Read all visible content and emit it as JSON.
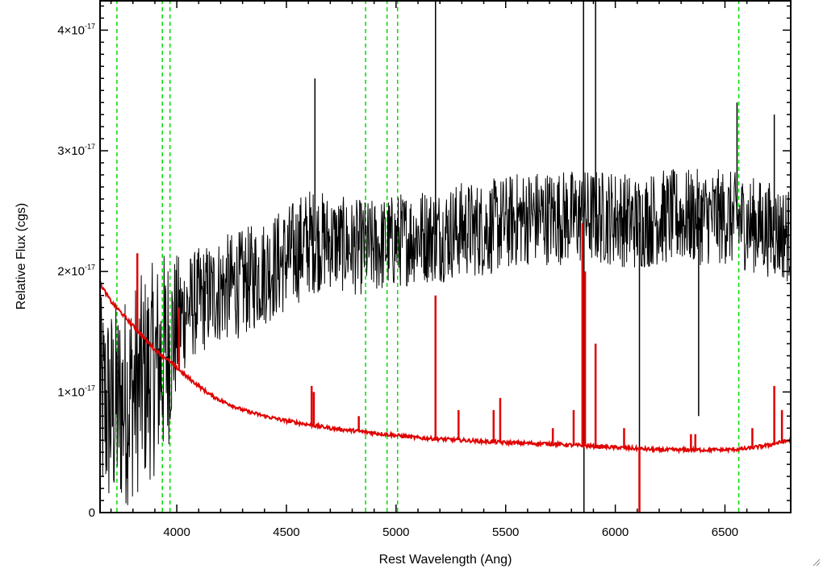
{
  "chart_data": {
    "type": "line",
    "xlabel": "Rest Wavelength (Ang)",
    "ylabel": "Relative Flux (cgs)",
    "xlim": [
      3650,
      6800
    ],
    "ylim": [
      0,
      4.25e-17
    ],
    "x_ticks": [
      {
        "value": 4000,
        "label": "4000"
      },
      {
        "value": 4500,
        "label": "4500"
      },
      {
        "value": 5000,
        "label": "5000"
      },
      {
        "value": 5500,
        "label": "5500"
      },
      {
        "value": 6000,
        "label": "6000"
      },
      {
        "value": 6500,
        "label": "6500"
      }
    ],
    "y_ticks": [
      {
        "value": 0,
        "base": "0",
        "exp": ""
      },
      {
        "value": 1e-17,
        "base": "1×10",
        "exp": "-17"
      },
      {
        "value": 2e-17,
        "base": "2×10",
        "exp": "-17"
      },
      {
        "value": 3e-17,
        "base": "3×10",
        "exp": "-17"
      },
      {
        "value": 4e-17,
        "base": "4×10",
        "exp": "-17"
      }
    ],
    "vertical_lines": [
      3727,
      3934,
      3969,
      4861,
      4959,
      5007,
      6563
    ],
    "series": [
      {
        "color": "#000000",
        "style": "noisy-observed",
        "envelope": {
          "x": [
            3650,
            3700,
            3750,
            3800,
            3850,
            3900,
            3950,
            4000,
            4050,
            4100,
            4200,
            4300,
            4400,
            4500,
            4600,
            4700,
            4800,
            4900,
            5000,
            5100,
            5200,
            5300,
            5400,
            5500,
            5600,
            5700,
            5800,
            5900,
            6000,
            6100,
            6200,
            6300,
            6400,
            6500,
            6600,
            6700,
            6800
          ],
          "center": [
            9e-18,
            8.5e-18,
            9e-18,
            1e-17,
            1.1e-17,
            1.2e-17,
            1.3e-17,
            1.55e-17,
            1.7e-17,
            1.75e-17,
            1.85e-17,
            1.9e-17,
            2e-17,
            2.1e-17,
            2.25e-17,
            2.25e-17,
            2.2e-17,
            2.2e-17,
            2.25e-17,
            2.3e-17,
            2.3e-17,
            2.35e-17,
            2.35e-17,
            2.4e-17,
            2.45e-17,
            2.45e-17,
            2.45e-17,
            2.45e-17,
            2.45e-17,
            2.4e-17,
            2.45e-17,
            2.45e-17,
            2.45e-17,
            2.45e-17,
            2.4e-17,
            2.35e-17,
            2.3e-17
          ],
          "amplitude": [
            9e-18,
            9e-18,
            9e-18,
            9e-18,
            9e-18,
            9e-18,
            9e-18,
            6e-18,
            4.5e-18,
            4.5e-18,
            4.5e-18,
            4.5e-18,
            4.5e-18,
            4.5e-18,
            4.5e-18,
            4e-18,
            4e-18,
            4e-18,
            4e-18,
            4e-18,
            4e-18,
            4e-18,
            4e-18,
            4e-18,
            4e-18,
            4e-18,
            4e-18,
            4e-18,
            4e-18,
            4e-18,
            4e-18,
            4e-18,
            4e-18,
            4e-18,
            4e-18,
            4e-18,
            4e-18
          ]
        },
        "features": [
          {
            "x": 5180,
            "y": 4.25e-17
          },
          {
            "x": 5855,
            "y": 4.25e-17
          },
          {
            "x": 5857,
            "y": 0
          },
          {
            "x": 5910,
            "y": 4.25e-17
          },
          {
            "x": 4630,
            "y": 3.6e-17
          },
          {
            "x": 6110,
            "y": 0
          },
          {
            "x": 6380,
            "y": 8e-18
          },
          {
            "x": 6555,
            "y": 3.4e-17
          },
          {
            "x": 6725,
            "y": 3.3e-17
          }
        ]
      },
      {
        "color": "#e00000",
        "style": "model-continuum",
        "continuum": {
          "x": [
            3650,
            3700,
            3750,
            3800,
            3850,
            3900,
            3950,
            4000,
            4050,
            4100,
            4150,
            4200,
            4300,
            4400,
            4500,
            4600,
            4700,
            4800,
            4900,
            5000,
            5100,
            5200,
            5300,
            5400,
            5500,
            5600,
            5700,
            5800,
            5900,
            6000,
            6100,
            6200,
            6300,
            6400,
            6500,
            6600,
            6700,
            6800
          ],
          "y": [
            1.9e-17,
            1.75e-17,
            1.65e-17,
            1.55e-17,
            1.45e-17,
            1.35e-17,
            1.28e-17,
            1.2e-17,
            1.12e-17,
            1.05e-17,
            9.8e-18,
            9.3e-18,
            8.5e-18,
            8e-18,
            7.6e-18,
            7.3e-18,
            7e-18,
            6.8e-18,
            6.6e-18,
            6.4e-18,
            6.2e-18,
            6.1e-18,
            6e-18,
            5.9e-18,
            5.8e-18,
            5.75e-18,
            5.7e-18,
            5.6e-18,
            5.5e-18,
            5.4e-18,
            5.3e-18,
            5.2e-18,
            5.2e-18,
            5.2e-18,
            5.2e-18,
            5.3e-18,
            5.6e-18,
            6e-18
          ]
        },
        "lines": [
          {
            "x": 3820,
            "y": 2.15e-17
          },
          {
            "x": 4010,
            "y": 1.7e-17
          },
          {
            "x": 4615,
            "y": 1.05e-17
          },
          {
            "x": 4625,
            "y": 1e-17
          },
          {
            "x": 4830,
            "y": 8e-18
          },
          {
            "x": 5180,
            "y": 1.8e-17
          },
          {
            "x": 5285,
            "y": 8.5e-18
          },
          {
            "x": 5445,
            "y": 8.5e-18
          },
          {
            "x": 5475,
            "y": 9.5e-18
          },
          {
            "x": 5715,
            "y": 7e-18
          },
          {
            "x": 5810,
            "y": 8.5e-18
          },
          {
            "x": 5850,
            "y": 2.4e-17
          },
          {
            "x": 5862,
            "y": 2e-17
          },
          {
            "x": 5910,
            "y": 1.4e-17
          },
          {
            "x": 6040,
            "y": 7e-18
          },
          {
            "x": 6110,
            "y": 0
          },
          {
            "x": 6345,
            "y": 6.5e-18
          },
          {
            "x": 6365,
            "y": 6.5e-18
          },
          {
            "x": 6625,
            "y": 7e-18
          },
          {
            "x": 6725,
            "y": 1.05e-17
          },
          {
            "x": 6760,
            "y": 8.5e-18
          }
        ]
      }
    ]
  }
}
